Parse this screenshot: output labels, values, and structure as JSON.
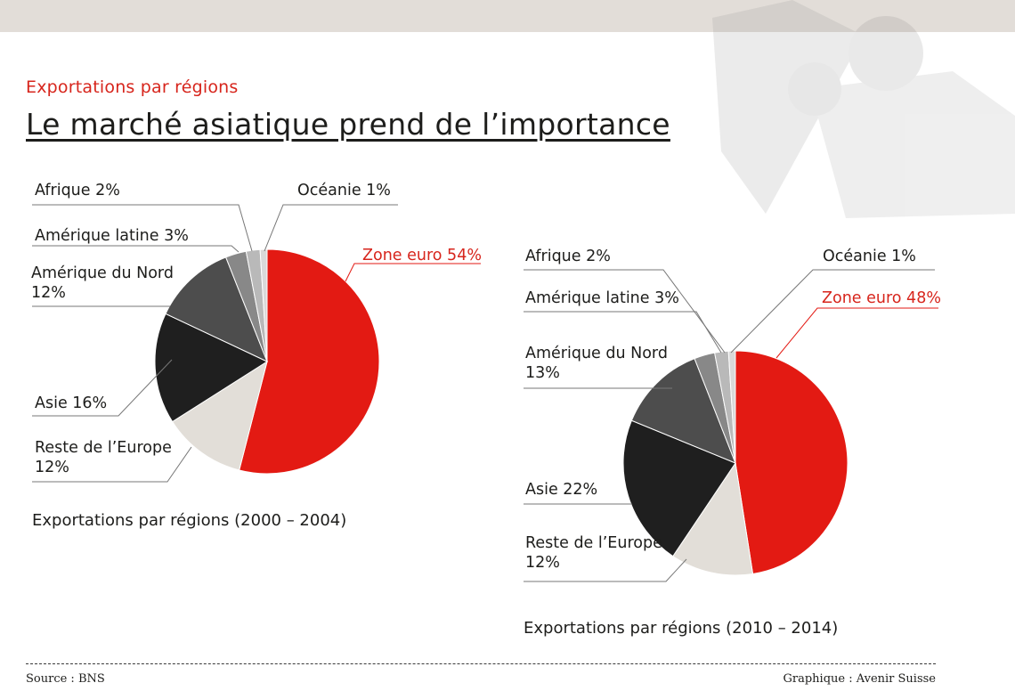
{
  "header": {
    "subtitle": "Exportations par régions",
    "title": "Le marché asiatique prend de l’importance"
  },
  "chart_data": [
    {
      "type": "pie",
      "title": "Exportations par régions (2000 – 2004)",
      "slices": [
        {
          "label": "Zone euro 54%",
          "value": 54,
          "color": "#e31a13"
        },
        {
          "label": "Reste de l’Europe\n12%",
          "value": 12,
          "color": "#e2ded8"
        },
        {
          "label": "Asie 16%",
          "value": 16,
          "color": "#1f1f1f"
        },
        {
          "label": "Amérique du Nord\n12%",
          "value": 12,
          "color": "#4d4d4d"
        },
        {
          "label": "Amérique latine 3%",
          "value": 3,
          "color": "#888888"
        },
        {
          "label": "Afrique 2%",
          "value": 2,
          "color": "#b9b9b9"
        },
        {
          "label": "Océanie 1%",
          "value": 1,
          "color": "#d9d9d9"
        }
      ]
    },
    {
      "type": "pie",
      "title": "Exportations par régions (2010 – 2014)",
      "slices": [
        {
          "label": "Zone euro 48%",
          "value": 48,
          "color": "#e31a13"
        },
        {
          "label": "Reste de l’Europe\n12%",
          "value": 12,
          "color": "#e2ded8"
        },
        {
          "label": "Asie 22%",
          "value": 22,
          "color": "#1f1f1f"
        },
        {
          "label": "Amérique du Nord\n13%",
          "value": 13,
          "color": "#4d4d4d"
        },
        {
          "label": "Amérique latine 3%",
          "value": 3,
          "color": "#888888"
        },
        {
          "label": "Afrique 2%",
          "value": 2,
          "color": "#b9b9b9"
        },
        {
          "label": "Océanie 1%",
          "value": 1,
          "color": "#d9d9d9"
        }
      ]
    }
  ],
  "footer": {
    "source": "Source : BNS",
    "credit": "Graphique : Avenir Suisse"
  }
}
